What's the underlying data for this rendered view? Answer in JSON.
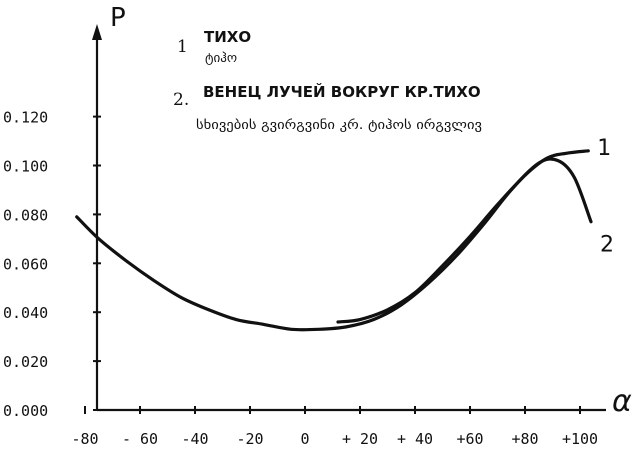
{
  "chart_data": {
    "type": "line",
    "ylabel": "P",
    "xlabel": "α",
    "xlim": [
      -90,
      110
    ],
    "ylim": [
      0,
      0.13
    ],
    "x_ticks": [
      "-80",
      "- 60",
      "-40",
      "-20",
      "0",
      "+ 20",
      "+ 40",
      "+60",
      "+80",
      "+100"
    ],
    "x_tick_values": [
      -80,
      -60,
      -40,
      -20,
      0,
      20,
      40,
      60,
      80,
      100
    ],
    "y_ticks": [
      "0.000",
      "0.020",
      "0.040",
      "0.060",
      "0.080",
      "0.100",
      "0.120"
    ],
    "y_tick_values": [
      0,
      0.02,
      0.04,
      0.06,
      0.08,
      0.1,
      0.12
    ],
    "legend": [
      {
        "number": "1",
        "ru": "ТИХО",
        "ka": "ტიჰო"
      },
      {
        "number": "2.",
        "ru": "ВЕНЕЦ ЛУЧЕЙ ВОКРУГ КР.ТИХО",
        "ka": "სხივების გვირგვინი კრ. ტიჰოს ირგვლივ"
      }
    ],
    "series": [
      {
        "label": "1",
        "x": [
          12,
          20,
          30,
          40,
          50,
          60,
          70,
          80,
          88,
          95,
          103
        ],
        "y": [
          0.036,
          0.037,
          0.041,
          0.048,
          0.059,
          0.071,
          0.084,
          0.096,
          0.103,
          0.105,
          0.106
        ]
      },
      {
        "label": "2",
        "x": [
          -83,
          -75,
          -65,
          -55,
          -45,
          -35,
          -25,
          -15,
          -5,
          5,
          15,
          25,
          35,
          45,
          55,
          65,
          75,
          85,
          92,
          98,
          104
        ],
        "y": [
          0.079,
          0.07,
          0.061,
          0.053,
          0.046,
          0.041,
          0.037,
          0.035,
          0.033,
          0.033,
          0.034,
          0.037,
          0.043,
          0.052,
          0.063,
          0.076,
          0.09,
          0.101,
          0.102,
          0.095,
          0.077
        ]
      }
    ]
  }
}
